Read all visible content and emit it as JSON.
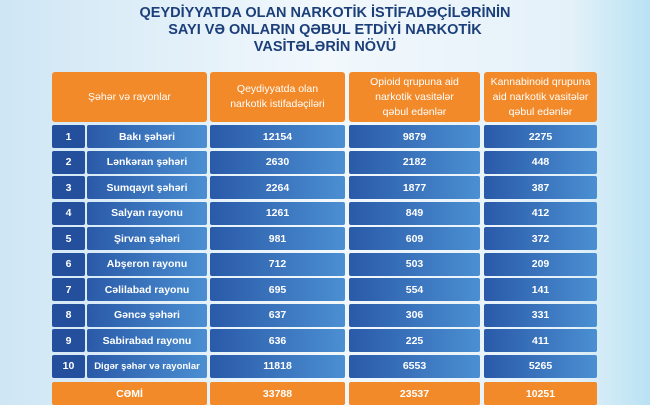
{
  "title": [
    "QEYDİYYATDA OLAN NARKOTİK İSTİFADƏÇİLƏRİNİN",
    "SAYI VƏ ONLARIN QƏBUL ETDİYİ NARKOTİK",
    "VASİTƏLƏRİN NÖVÜ"
  ],
  "headers": [
    "Şəhər və rayonlar",
    "Qeydiyyatda olan narkotik istifadəçiləri",
    "Opioid qrupuna aid narkotik vasitələr qəbul edənlər",
    "Kannabinoid qrupuna aid narkotik vasitələr qəbul edənlər"
  ],
  "rows": [
    [
      "1",
      "Bakı şəhəri",
      "12154",
      "9879",
      "2275"
    ],
    [
      "2",
      "Lənkəran şəhəri",
      "2630",
      "2182",
      "448"
    ],
    [
      "3",
      "Sumqayıt şəhəri",
      "2264",
      "1877",
      "387"
    ],
    [
      "4",
      "Salyan rayonu",
      "1261",
      "849",
      "412"
    ],
    [
      "5",
      "Şirvan şəhəri",
      "981",
      "609",
      "372"
    ],
    [
      "6",
      "Abşeron rayonu",
      "712",
      "503",
      "209"
    ],
    [
      "7",
      "Cəlilabad rayonu",
      "695",
      "554",
      "141"
    ],
    [
      "8",
      "Gəncə şəhəri",
      "637",
      "306",
      "331"
    ],
    [
      "9",
      "Sabirabad rayonu",
      "636",
      "225",
      "411"
    ],
    [
      "10",
      "Digər şəhər və rayonlar",
      "11818",
      "6553",
      "5265"
    ]
  ],
  "total": {
    "label": "CƏMİ",
    "values": [
      "33788",
      "23537",
      "10251"
    ]
  }
}
